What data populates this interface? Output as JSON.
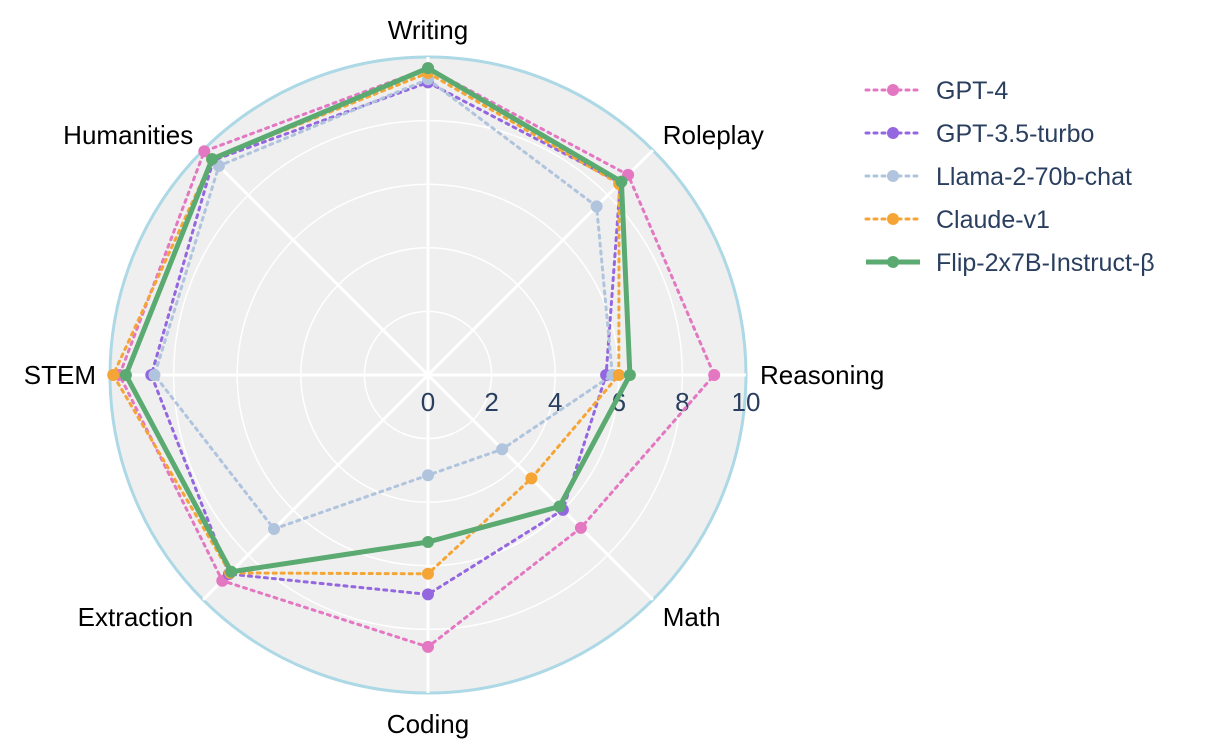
{
  "chart_data": {
    "type": "radar",
    "categories": [
      "Writing",
      "Roleplay",
      "Reasoning",
      "Math",
      "Coding",
      "Extraction",
      "STEM",
      "Humanities"
    ],
    "radial_range": [
      0,
      10
    ],
    "radial_ticks": [
      "0",
      "2",
      "4",
      "6",
      "8",
      "10"
    ],
    "series": [
      {
        "name": "GPT-4",
        "color": "#e377c2",
        "dash": "dot",
        "values": [
          9.65,
          8.9,
          9.0,
          6.8,
          8.55,
          9.15,
          9.7,
          9.95
        ]
      },
      {
        "name": "GPT-3.5-turbo",
        "color": "#9467e0",
        "dash": "dot",
        "values": [
          9.2,
          8.55,
          5.6,
          6.0,
          6.9,
          8.85,
          8.7,
          9.55
        ]
      },
      {
        "name": "Llama-2-70b-chat",
        "color": "#b0c4de",
        "dash": "dot",
        "values": [
          9.3,
          7.5,
          5.8,
          3.3,
          3.15,
          6.85,
          8.6,
          9.3
        ]
      },
      {
        "name": "Claude-v1",
        "color": "#f5a535",
        "dash": "dot",
        "values": [
          9.5,
          8.5,
          6.0,
          4.6,
          6.25,
          8.8,
          9.9,
          9.6
        ]
      },
      {
        "name": "Flip-2x7B-Instruct-β",
        "color": "#5aaa71",
        "dash": "solid",
        "values": [
          9.65,
          8.6,
          6.35,
          5.85,
          5.25,
          8.75,
          9.5,
          9.6
        ]
      }
    ]
  }
}
